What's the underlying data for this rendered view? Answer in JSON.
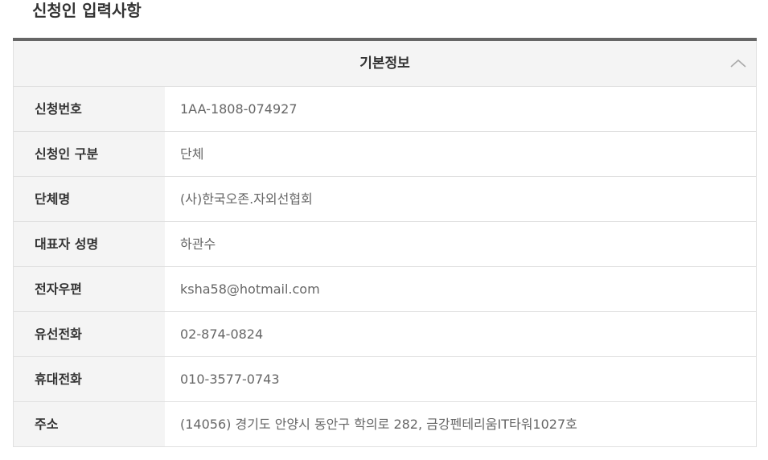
{
  "page_title": "신청인 입력사항",
  "section": {
    "title": "기본정보",
    "toggle_icon": "chevron-up-icon"
  },
  "rows": [
    {
      "label": "신청번호",
      "value": "1AA-1808-074927"
    },
    {
      "label": "신청인 구분",
      "value": "단체"
    },
    {
      "label": "단체명",
      "value": "(사)한국오존.자외선협회"
    },
    {
      "label": "대표자 성명",
      "value": "하관수"
    },
    {
      "label": "전자우편",
      "value": "ksha58@hotmail.com"
    },
    {
      "label": "유선전화",
      "value": "02-874-0824"
    },
    {
      "label": "휴대전화",
      "value": "010-3577-0743"
    },
    {
      "label": "주소",
      "value": "(14056) 경기도 안양시 동안구 학의로 282, 금강펜테리움IT타워1027호"
    }
  ]
}
